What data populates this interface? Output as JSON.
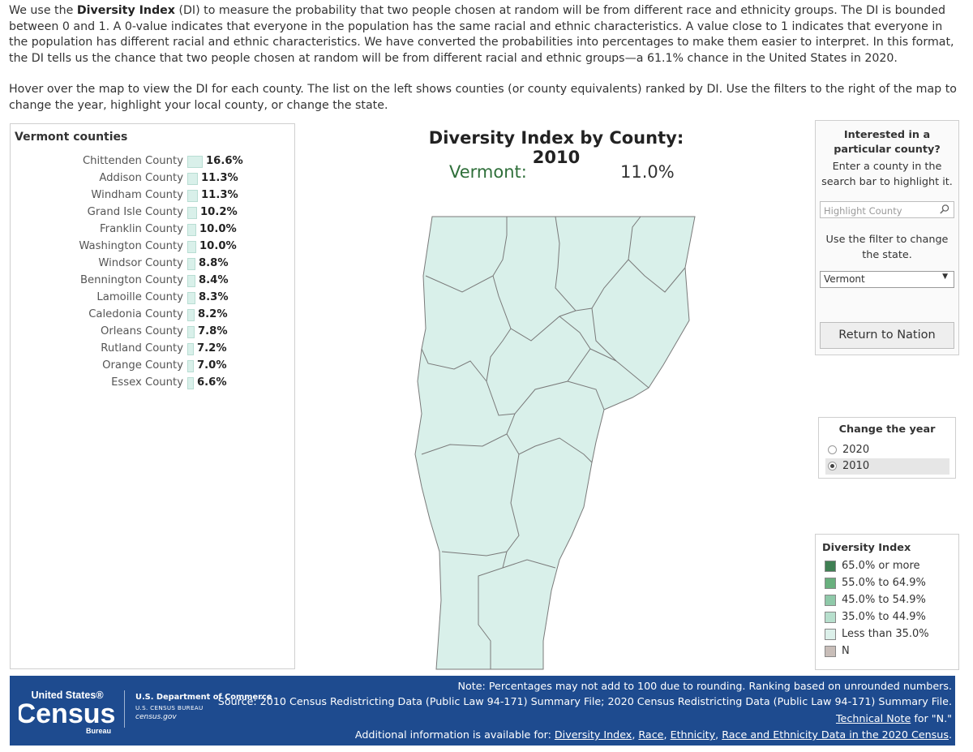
{
  "intro": {
    "p1_a": "We use the ",
    "p1_bold": "Diversity Index",
    "p1_b": " (DI) to measure the probability that two people chosen at random will be from different race and ethnicity groups. The DI is bounded between 0 and 1. A 0-value indicates that everyone in the population has the same racial and ethnic characteristics. A value close to 1 indicates that everyone in the population has different racial and ethnic characteristics. We have converted the probabilities into percentages to make them easier to interpret. In this format, the DI tells us the chance that two people chosen at random will be from different racial and ethnic groups—a 61.1% chance in the United States in 2020.",
    "p2": "Hover over the map to view the DI for each county. The list on the left shows counties (or county equivalents) ranked by DI. Use the filters to the right of the map to change the year, highlight your local county, or change the state."
  },
  "county_list": {
    "title": "Vermont counties",
    "counties": [
      {
        "name": "Chittenden County",
        "value_label": "16.6%",
        "value": 16.6
      },
      {
        "name": "Addison County",
        "value_label": "11.3%",
        "value": 11.3
      },
      {
        "name": "Windham County",
        "value_label": "11.3%",
        "value": 11.3
      },
      {
        "name": "Grand Isle County",
        "value_label": "10.2%",
        "value": 10.2
      },
      {
        "name": "Franklin County",
        "value_label": "10.0%",
        "value": 10.0
      },
      {
        "name": "Washington County",
        "value_label": "10.0%",
        "value": 10.0
      },
      {
        "name": "Windsor County",
        "value_label": "8.8%",
        "value": 8.8
      },
      {
        "name": "Bennington County",
        "value_label": "8.4%",
        "value": 8.4
      },
      {
        "name": "Lamoille County",
        "value_label": "8.3%",
        "value": 8.3
      },
      {
        "name": "Caledonia County",
        "value_label": "8.2%",
        "value": 8.2
      },
      {
        "name": "Orleans County",
        "value_label": "7.8%",
        "value": 7.8
      },
      {
        "name": "Rutland County",
        "value_label": "7.2%",
        "value": 7.2
      },
      {
        "name": "Orange County",
        "value_label": "7.0%",
        "value": 7.0
      },
      {
        "name": "Essex County",
        "value_label": "6.6%",
        "value": 6.6
      }
    ]
  },
  "map": {
    "title": "Diversity Index by County: 2010",
    "state_label": "Vermont:",
    "state_value": "11.0%",
    "fill_color": "#d9f0ea",
    "stroke_color": "#7a7a7a"
  },
  "filters": {
    "question": "Interested in a particular county?",
    "hint": "Enter a county in the search bar to highlight it.",
    "search_placeholder": "Highlight County",
    "state_hint": "Use the filter to change the state.",
    "state_selected": "Vermont",
    "return_button": "Return to Nation"
  },
  "year": {
    "title": "Change the year",
    "options": [
      {
        "label": "2020",
        "selected": false
      },
      {
        "label": "2010",
        "selected": true
      }
    ]
  },
  "legend": {
    "title": "Diversity Index",
    "items": [
      {
        "label": "65.0% or more",
        "color": "#3f7f53"
      },
      {
        "label": "55.0% to 64.9%",
        "color": "#69b07e"
      },
      {
        "label": "45.0% to 54.9%",
        "color": "#8fc9a9"
      },
      {
        "label": "35.0% to 44.9%",
        "color": "#b7dfcd"
      },
      {
        "label": "Less than 35.0%",
        "color": "#dcf0ea"
      },
      {
        "label": "N",
        "color": "#c8bdb8"
      }
    ]
  },
  "footer": {
    "logo_top": "United States®",
    "logo_main": "Census",
    "logo_sub": "Bureau",
    "dept": "U.S. Department of Commerce",
    "bureau": "U.S. CENSUS BUREAU",
    "site": "census.gov",
    "note": "Note: Percentages may not add to 100 due to rounding. Ranking based on unrounded numbers.",
    "source": "Source: 2010 Census Redistricting Data (Public Law 94-171) Summary File; 2020 Census Redistricting Data (Public Law 94-171) Summary File.",
    "tech_link": "Technical Note",
    "tech_suffix": " for \"N.\"",
    "additional": "Additional information is available for: ",
    "links": [
      "Diversity Index",
      "Race",
      "Ethnicity",
      "Race and Ethnicity Data in the 2020 Census"
    ],
    "end": "."
  },
  "colors": {
    "brand_blue": "#1e4b8f",
    "state_green": "#2f6f3a"
  }
}
